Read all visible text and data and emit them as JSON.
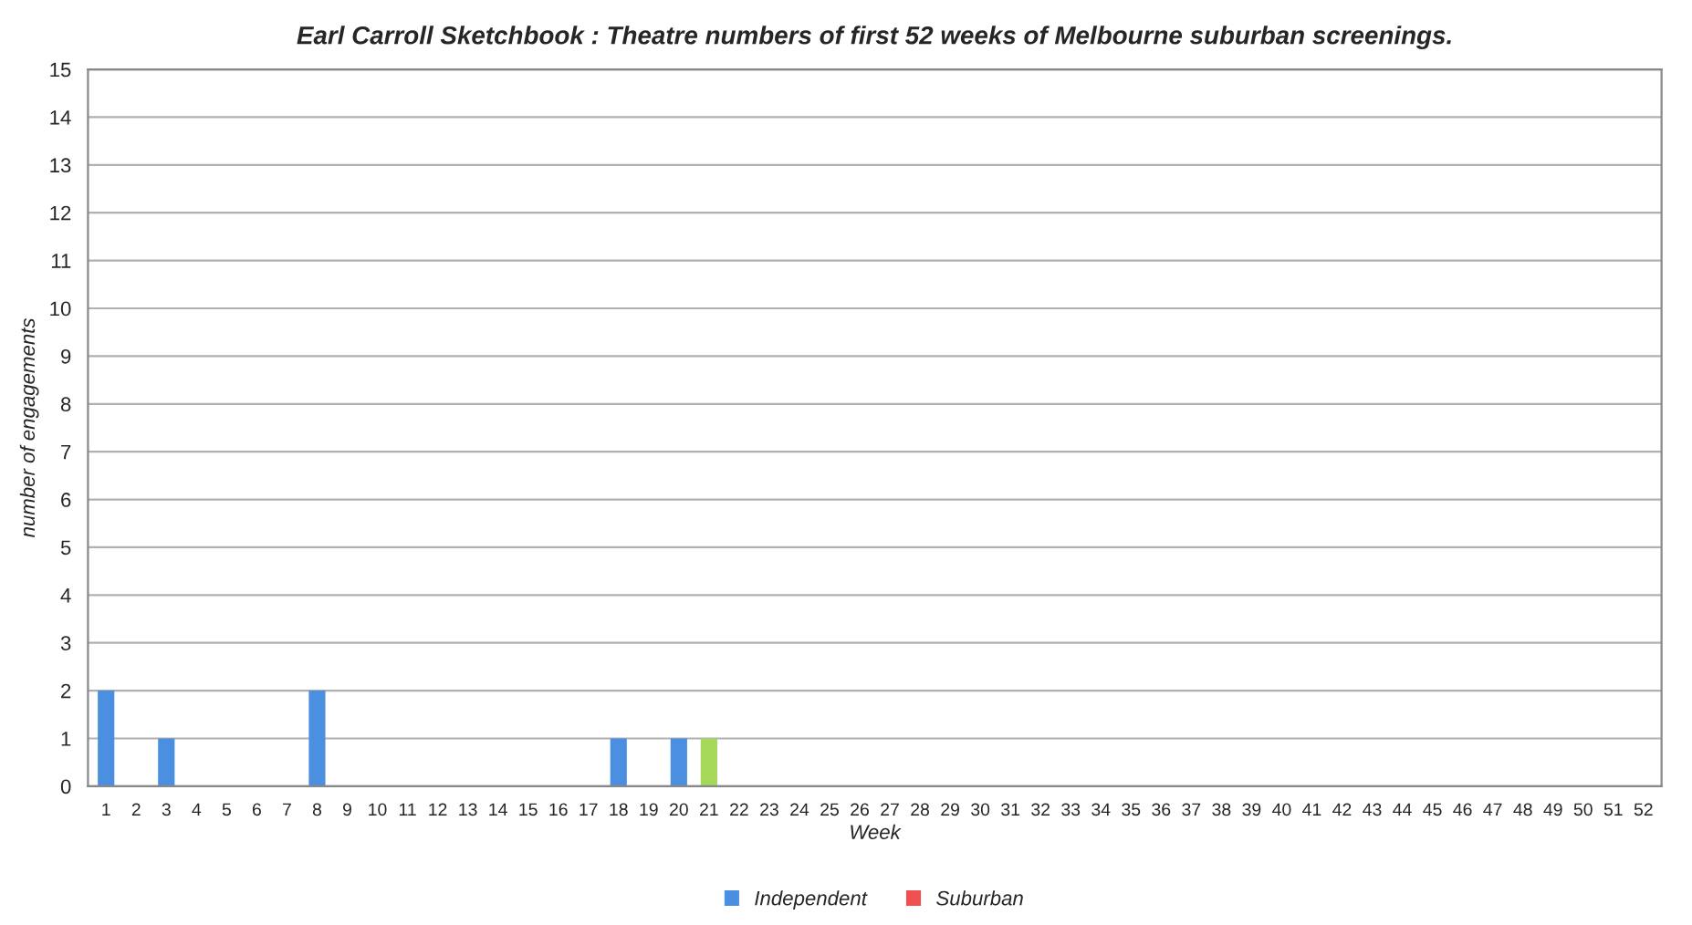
{
  "chart_data": {
    "type": "bar",
    "title": "Earl Carroll Sketchbook : Theatre numbers of first 52 weeks of Melbourne suburban screenings.",
    "xlabel": "Week",
    "ylabel": "number of engagements",
    "categories": [
      "1",
      "2",
      "3",
      "4",
      "5",
      "6",
      "7",
      "8",
      "9",
      "10",
      "11",
      "12",
      "13",
      "14",
      "15",
      "16",
      "17",
      "18",
      "19",
      "20",
      "21",
      "22",
      "23",
      "24",
      "25",
      "26",
      "27",
      "28",
      "29",
      "30",
      "31",
      "32",
      "33",
      "34",
      "35",
      "36",
      "37",
      "38",
      "39",
      "40",
      "41",
      "42",
      "43",
      "44",
      "45",
      "46",
      "47",
      "48",
      "49",
      "50",
      "51",
      "52"
    ],
    "stacked": true,
    "series": [
      {
        "name": "Independent",
        "color": "#4a8fe0",
        "values": [
          2,
          0,
          1,
          0,
          0,
          0,
          0,
          2,
          0,
          0,
          0,
          0,
          0,
          0,
          0,
          0,
          0,
          1,
          0,
          1,
          0,
          0,
          0,
          0,
          0,
          0,
          0,
          0,
          0,
          0,
          0,
          0,
          0,
          0,
          0,
          0,
          0,
          0,
          0,
          0,
          0,
          0,
          0,
          0,
          0,
          0,
          0,
          0,
          0,
          0,
          0,
          0
        ]
      },
      {
        "name": "Suburban",
        "color": "#f05050",
        "values": [
          0,
          0,
          0,
          0,
          0,
          0,
          0,
          0,
          0,
          0,
          0,
          0,
          0,
          0,
          0,
          0,
          0,
          0,
          0,
          0,
          0,
          0,
          0,
          0,
          0,
          0,
          0,
          0,
          0,
          0,
          0,
          0,
          0,
          0,
          0,
          0,
          0,
          0,
          0,
          0,
          0,
          0,
          0,
          0,
          0,
          0,
          0,
          0,
          0,
          0,
          0,
          0
        ]
      },
      {
        "color": "#a6d85a",
        "values": [
          0,
          0,
          0,
          0,
          0,
          0,
          0,
          0,
          0,
          0,
          0,
          0,
          0,
          0,
          0,
          0,
          0,
          0,
          0,
          0,
          1,
          0,
          0,
          0,
          0,
          0,
          0,
          0,
          0,
          0,
          0,
          0,
          0,
          0,
          0,
          0,
          0,
          0,
          0,
          0,
          0,
          0,
          0,
          0,
          0,
          0,
          0,
          0,
          0,
          0,
          0,
          0
        ]
      }
    ],
    "ylim": [
      0,
      15
    ],
    "yticks": [
      0,
      1,
      2,
      3,
      4,
      5,
      6,
      7,
      8,
      9,
      10,
      11,
      12,
      13,
      14,
      15
    ],
    "grid": "y",
    "legend": "bottom"
  }
}
